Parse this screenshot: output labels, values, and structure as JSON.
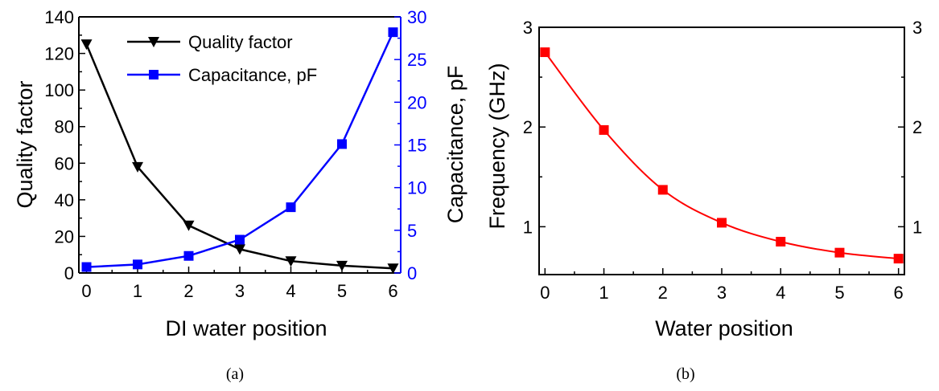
{
  "chart_data": [
    {
      "type": "line",
      "panel_label": "(a)",
      "x": [
        0,
        1,
        2,
        3,
        4,
        5,
        6
      ],
      "xlabel": "DI water position",
      "xlim": [
        -0.15,
        6.15
      ],
      "xticks": [
        "0",
        "1",
        "2",
        "3",
        "4",
        "5",
        "6"
      ],
      "ylabel": "Quality factor",
      "ylim": [
        0,
        140
      ],
      "yticks": [
        "0",
        "20",
        "40",
        "60",
        "80",
        "100",
        "120",
        "140"
      ],
      "y2label": "Capacitance, pF",
      "y2lim": [
        0,
        30
      ],
      "y2ticks": [
        "0",
        "5",
        "10",
        "15",
        "20",
        "25",
        "30"
      ],
      "grid": false,
      "legend_position": "top-center",
      "series": [
        {
          "name": "Quality factor",
          "axis": "left",
          "color": "#000000",
          "marker": "triangle-down",
          "values": [
            125,
            58,
            26,
            13,
            6.5,
            4,
            2.5
          ]
        },
        {
          "name": "Capacitance, pF",
          "axis": "right",
          "color": "#0000ff",
          "marker": "square",
          "values": [
            0.7,
            1.0,
            2.0,
            3.9,
            7.7,
            15.1,
            28.2
          ]
        }
      ]
    },
    {
      "type": "line",
      "panel_label": "(b)",
      "x": [
        0,
        1,
        2,
        3,
        4,
        5,
        6
      ],
      "xlabel": "Water position",
      "xlim": [
        -0.1,
        6.1
      ],
      "xticks": [
        "0",
        "1",
        "2",
        "3",
        "4",
        "5",
        "6"
      ],
      "ylabel": "Frequency (GHz)",
      "ylim": [
        0.52,
        3.0
      ],
      "yticks": [
        "1",
        "2",
        "3"
      ],
      "y2ticks": [
        "1",
        "2",
        "3"
      ],
      "grid": false,
      "series": [
        {
          "axis": "left",
          "color": "#ff0000",
          "marker": "square",
          "values": [
            2.75,
            1.97,
            1.37,
            1.04,
            0.85,
            0.74,
            0.68
          ]
        }
      ]
    }
  ],
  "colors": {
    "capacitance_axis": "#0000ff",
    "frequency_series": "#ff0000",
    "axis": "#000000"
  }
}
